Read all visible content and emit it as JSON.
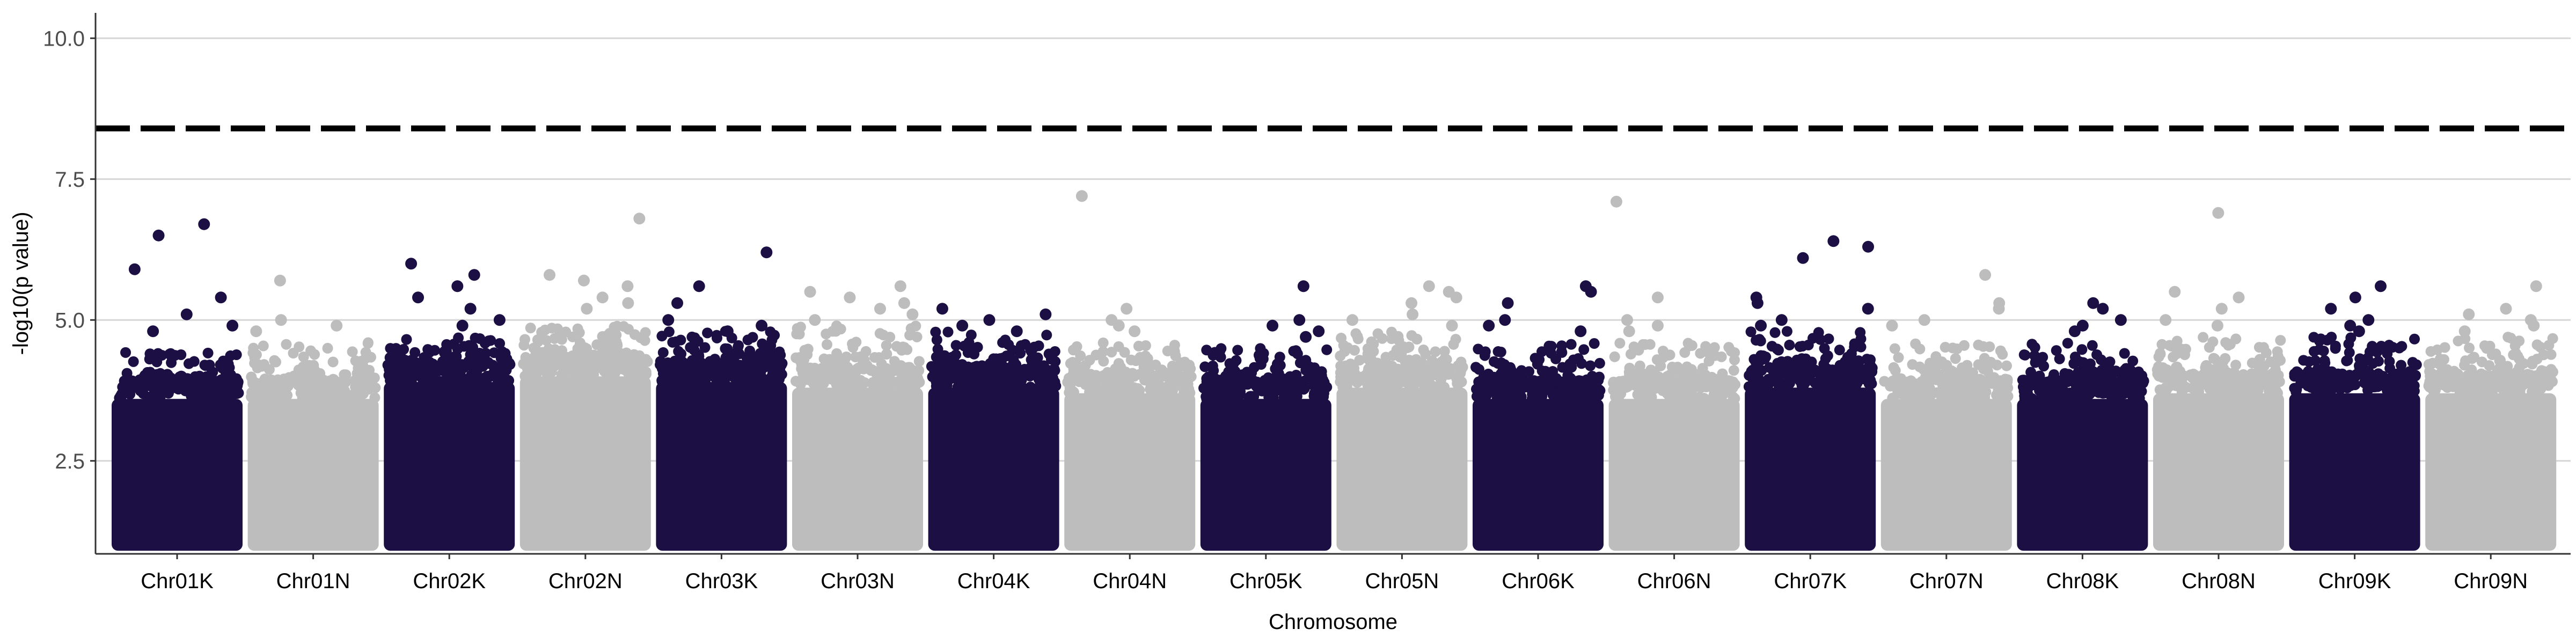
{
  "chart_data": {
    "type": "scatter",
    "title": "",
    "xlabel": "Chromosome",
    "ylabel": "-log10(p value)",
    "ylim": [
      0.85,
      10.45
    ],
    "yticks": [
      2.5,
      5.0,
      7.5,
      10.0
    ],
    "ytick_labels": [
      "2.5",
      "5.0",
      "7.5",
      "10.0"
    ],
    "grid": "horizontal major lines",
    "legend": "none",
    "threshold": {
      "value": 8.4,
      "style": "dashed",
      "color": "#000000"
    },
    "colors": {
      "dark": "#1c0f44",
      "light": "#bdbdbd"
    },
    "min_plotted_value": 1.0,
    "categories": [
      "Chr01K",
      "Chr01N",
      "Chr02K",
      "Chr02N",
      "Chr03K",
      "Chr03N",
      "Chr04K",
      "Chr04N",
      "Chr05K",
      "Chr05N",
      "Chr06K",
      "Chr06N",
      "Chr07K",
      "Chr07N",
      "Chr08K",
      "Chr08N",
      "Chr09K",
      "Chr09N"
    ],
    "series": [
      {
        "category": "Chr01K",
        "color": "dark",
        "dense_top": 3.6,
        "scatter_max": 4.5,
        "peaks": [
          6.7,
          6.5,
          5.9,
          5.4,
          5.1,
          4.9,
          4.8
        ]
      },
      {
        "category": "Chr01N",
        "color": "light",
        "dense_top": 3.6,
        "scatter_max": 4.6,
        "peaks": [
          5.7,
          5.0,
          4.9,
          4.8
        ]
      },
      {
        "category": "Chr02K",
        "color": "dark",
        "dense_top": 3.9,
        "scatter_max": 4.7,
        "peaks": [
          6.0,
          5.8,
          5.6,
          5.4,
          5.2,
          5.0,
          4.9
        ]
      },
      {
        "category": "Chr02N",
        "color": "light",
        "dense_top": 4.0,
        "scatter_max": 4.9,
        "peaks": [
          6.8,
          5.8,
          5.7,
          5.6,
          5.4,
          5.3,
          5.2
        ]
      },
      {
        "category": "Chr03K",
        "color": "dark",
        "dense_top": 3.9,
        "scatter_max": 4.8,
        "peaks": [
          6.2,
          5.6,
          5.3,
          5.0,
          4.9,
          4.8
        ]
      },
      {
        "category": "Chr03N",
        "color": "light",
        "dense_top": 3.8,
        "scatter_max": 4.9,
        "peaks": [
          5.6,
          5.5,
          5.4,
          5.3,
          5.2,
          5.1,
          5.0
        ]
      },
      {
        "category": "Chr04K",
        "color": "dark",
        "dense_top": 3.8,
        "scatter_max": 4.8,
        "peaks": [
          5.2,
          5.1,
          5.0,
          4.9,
          4.8
        ]
      },
      {
        "category": "Chr04N",
        "color": "light",
        "dense_top": 3.7,
        "scatter_max": 4.6,
        "peaks": [
          7.2,
          5.2,
          5.0,
          4.9,
          4.8
        ]
      },
      {
        "category": "Chr05K",
        "color": "dark",
        "dense_top": 3.6,
        "scatter_max": 4.5,
        "peaks": [
          5.6,
          5.0,
          4.9,
          4.8,
          4.7
        ]
      },
      {
        "category": "Chr05N",
        "color": "light",
        "dense_top": 3.8,
        "scatter_max": 4.8,
        "peaks": [
          5.6,
          5.5,
          5.4,
          5.3,
          5.1,
          5.0,
          4.9
        ]
      },
      {
        "category": "Chr06K",
        "color": "dark",
        "dense_top": 3.6,
        "scatter_max": 4.6,
        "peaks": [
          5.6,
          5.5,
          5.3,
          5.0,
          4.9,
          4.8
        ]
      },
      {
        "category": "Chr06N",
        "color": "light",
        "dense_top": 3.6,
        "scatter_max": 4.6,
        "peaks": [
          7.1,
          5.4,
          5.0,
          4.9,
          4.8
        ]
      },
      {
        "category": "Chr07K",
        "color": "dark",
        "dense_top": 3.8,
        "scatter_max": 4.8,
        "peaks": [
          6.4,
          6.3,
          6.1,
          5.4,
          5.3,
          5.2,
          5.0,
          4.9
        ]
      },
      {
        "category": "Chr07N",
        "color": "light",
        "dense_top": 3.6,
        "scatter_max": 4.6,
        "peaks": [
          5.8,
          5.3,
          5.2,
          5.0,
          4.9
        ]
      },
      {
        "category": "Chr08K",
        "color": "dark",
        "dense_top": 3.6,
        "scatter_max": 4.6,
        "peaks": [
          5.3,
          5.2,
          5.0,
          4.9,
          4.8
        ]
      },
      {
        "category": "Chr08N",
        "color": "light",
        "dense_top": 3.7,
        "scatter_max": 4.7,
        "peaks": [
          6.9,
          5.5,
          5.4,
          5.2,
          5.0,
          4.9
        ]
      },
      {
        "category": "Chr09K",
        "color": "dark",
        "dense_top": 3.7,
        "scatter_max": 4.7,
        "peaks": [
          5.6,
          5.4,
          5.2,
          5.0,
          4.9,
          4.8
        ]
      },
      {
        "category": "Chr09N",
        "color": "light",
        "dense_top": 3.7,
        "scatter_max": 4.7,
        "peaks": [
          5.6,
          5.2,
          5.1,
          5.0,
          4.9,
          4.8
        ]
      }
    ]
  }
}
